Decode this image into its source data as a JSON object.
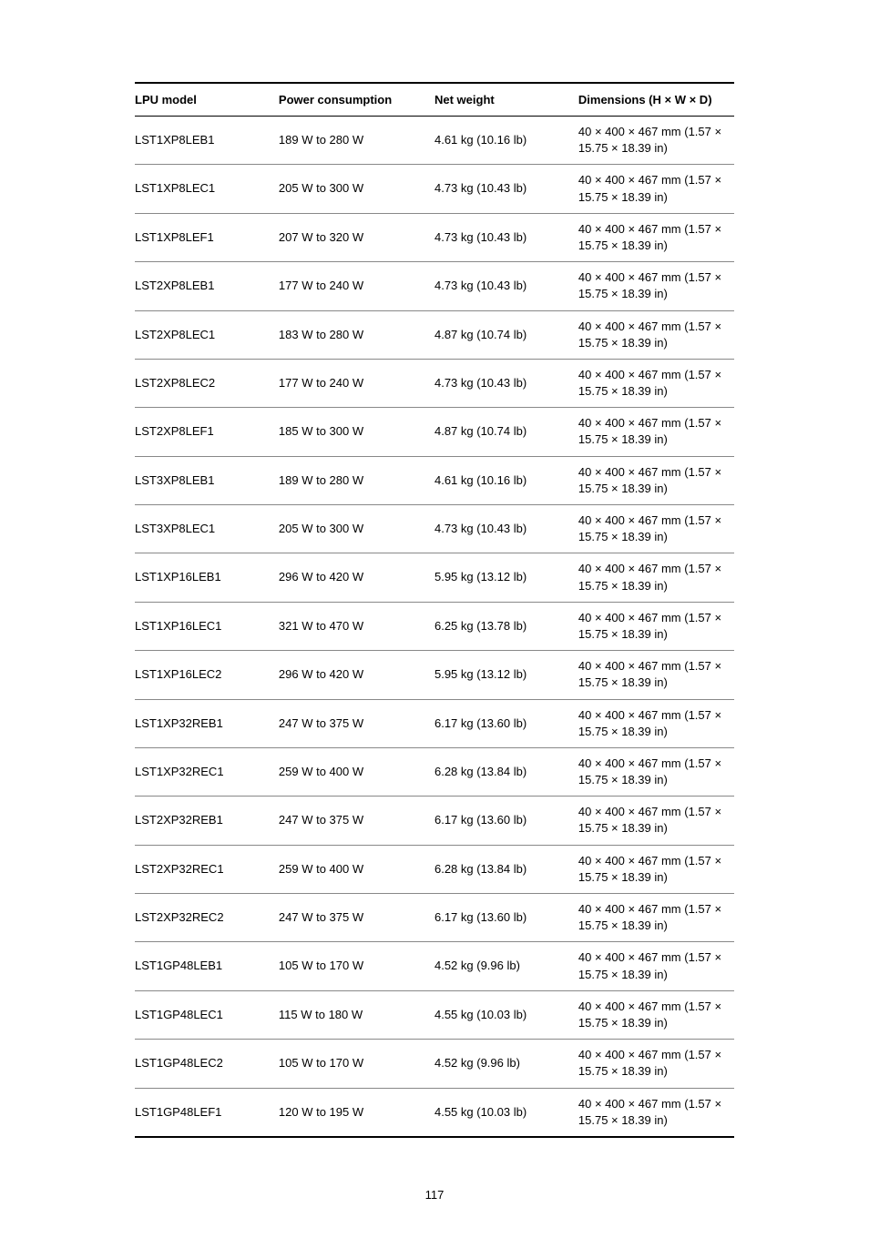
{
  "table": {
    "headers": {
      "model": "LPU model",
      "power": "Power consumption",
      "weight": "Net weight",
      "dimensions": "Dimensions (H × W × D)"
    },
    "rows": [
      {
        "model": "LST1XP8LEB1",
        "power": "189 W to 280 W",
        "weight": "4.61 kg (10.16 lb)",
        "dimensions": "40 × 400 × 467 mm (1.57 × 15.75 × 18.39 in)"
      },
      {
        "model": "LST1XP8LEC1",
        "power": "205 W to 300 W",
        "weight": "4.73 kg (10.43 lb)",
        "dimensions": "40 × 400 × 467 mm (1.57 × 15.75 × 18.39 in)"
      },
      {
        "model": "LST1XP8LEF1",
        "power": "207 W to 320 W",
        "weight": "4.73 kg (10.43 lb)",
        "dimensions": "40 × 400 × 467 mm (1.57 × 15.75 × 18.39 in)"
      },
      {
        "model": "LST2XP8LEB1",
        "power": "177 W to 240 W",
        "weight": "4.73 kg (10.43 lb)",
        "dimensions": "40 × 400 × 467 mm (1.57 × 15.75 × 18.39 in)"
      },
      {
        "model": "LST2XP8LEC1",
        "power": "183 W to 280 W",
        "weight": "4.87 kg (10.74 lb)",
        "dimensions": "40 × 400 × 467 mm (1.57 × 15.75 × 18.39 in)"
      },
      {
        "model": "LST2XP8LEC2",
        "power": "177 W to 240 W",
        "weight": "4.73 kg (10.43 lb)",
        "dimensions": "40 × 400 × 467 mm (1.57 × 15.75 × 18.39 in)"
      },
      {
        "model": "LST2XP8LEF1",
        "power": "185 W to 300 W",
        "weight": "4.87 kg (10.74 lb)",
        "dimensions": "40 × 400 × 467 mm (1.57 × 15.75 × 18.39 in)"
      },
      {
        "model": "LST3XP8LEB1",
        "power": "189 W to 280 W",
        "weight": "4.61 kg (10.16 lb)",
        "dimensions": "40 × 400 × 467 mm (1.57 × 15.75 × 18.39 in)"
      },
      {
        "model": "LST3XP8LEC1",
        "power": "205 W to 300 W",
        "weight": "4.73 kg (10.43 lb)",
        "dimensions": "40 × 400 × 467 mm (1.57 × 15.75 × 18.39 in)"
      },
      {
        "model": "LST1XP16LEB1",
        "power": "296 W to 420 W",
        "weight": "5.95 kg (13.12 lb)",
        "dimensions": "40 × 400 × 467 mm (1.57 × 15.75 × 18.39 in)"
      },
      {
        "model": "LST1XP16LEC1",
        "power": "321 W to 470 W",
        "weight": "6.25 kg (13.78 lb)",
        "dimensions": "40 × 400 × 467 mm (1.57 × 15.75 × 18.39 in)"
      },
      {
        "model": "LST1XP16LEC2",
        "power": "296 W to 420 W",
        "weight": "5.95 kg (13.12 lb)",
        "dimensions": "40 × 400 × 467 mm (1.57 × 15.75 × 18.39 in)"
      },
      {
        "model": "LST1XP32REB1",
        "power": "247 W to 375 W",
        "weight": "6.17 kg (13.60 lb)",
        "dimensions": "40 × 400 × 467 mm (1.57 × 15.75 × 18.39 in)"
      },
      {
        "model": "LST1XP32REC1",
        "power": "259 W to 400 W",
        "weight": "6.28 kg (13.84 lb)",
        "dimensions": "40 × 400 × 467 mm (1.57 × 15.75 × 18.39 in)"
      },
      {
        "model": "LST2XP32REB1",
        "power": "247 W to 375 W",
        "weight": "6.17 kg (13.60 lb)",
        "dimensions": "40 × 400 × 467 mm (1.57 × 15.75 × 18.39 in)"
      },
      {
        "model": "LST2XP32REC1",
        "power": "259 W to 400 W",
        "weight": "6.28 kg (13.84 lb)",
        "dimensions": "40 × 400 × 467 mm (1.57 × 15.75 × 18.39 in)"
      },
      {
        "model": "LST2XP32REC2",
        "power": "247 W to 375 W",
        "weight": "6.17 kg (13.60 lb)",
        "dimensions": "40 × 400 × 467 mm (1.57 × 15.75 × 18.39 in)"
      },
      {
        "model": "LST1GP48LEB1",
        "power": "105 W to 170 W",
        "weight": "4.52 kg (9.96 lb)",
        "dimensions": "40 × 400 × 467 mm (1.57 × 15.75 × 18.39 in)"
      },
      {
        "model": "LST1GP48LEC1",
        "power": "115 W to 180 W",
        "weight": "4.55 kg (10.03 lb)",
        "dimensions": "40 × 400 × 467 mm (1.57 × 15.75 × 18.39 in)"
      },
      {
        "model": "LST1GP48LEC2",
        "power": "105 W to 170 W",
        "weight": "4.52 kg (9.96 lb)",
        "dimensions": "40 × 400 × 467 mm (1.57 × 15.75 × 18.39 in)"
      },
      {
        "model": "LST1GP48LEF1",
        "power": "120 W to 195 W",
        "weight": "4.55 kg (10.03 lb)",
        "dimensions": "40 × 400 × 467 mm (1.57 × 15.75 × 18.39 in)"
      }
    ]
  },
  "page_number": "117"
}
